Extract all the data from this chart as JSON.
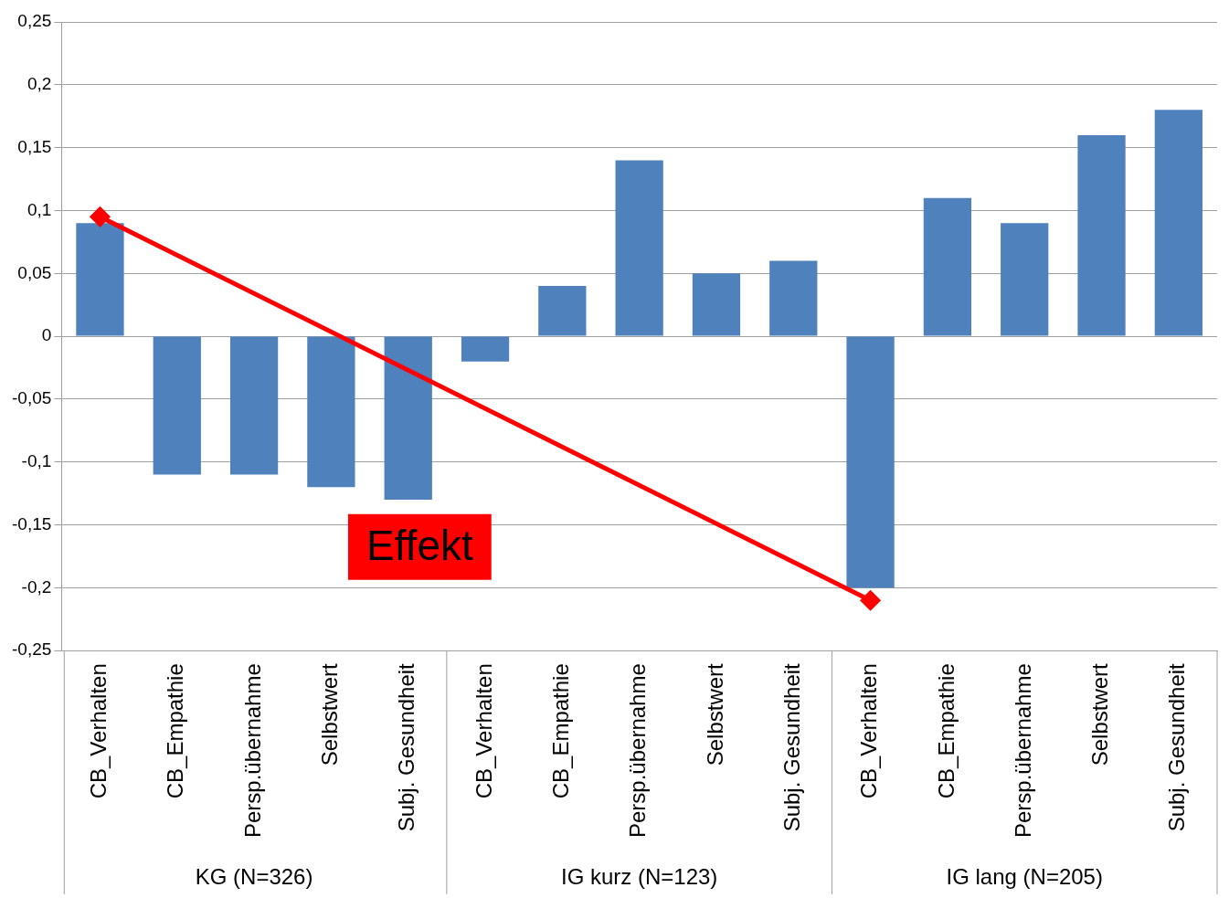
{
  "chart_data": {
    "type": "bar",
    "categories": [
      "CB_Verhalten",
      "CB_Empathie",
      "Persp.übernahme",
      "Selbstwert",
      "Subj. Gesundheit",
      "CB_Verhalten",
      "CB_Empathie",
      "Persp.übernahme",
      "Selbstwert",
      "Subj. Gesundheit",
      "CB_Verhalten",
      "CB_Empathie",
      "Persp.übernahme",
      "Selbstwert",
      "Subj. Gesundheit"
    ],
    "series": [
      {
        "type": "bar",
        "color": "#4f81bd",
        "values": [
          0.09,
          -0.11,
          -0.11,
          -0.12,
          -0.13,
          -0.02,
          0.04,
          0.14,
          0.05,
          0.06,
          -0.2,
          0.11,
          0.09,
          0.16,
          0.18
        ]
      },
      {
        "type": "line",
        "color": "#ff0000",
        "values": [
          0.095,
          null,
          null,
          null,
          null,
          null,
          null,
          null,
          null,
          null,
          -0.21,
          null,
          null,
          null,
          null
        ]
      }
    ],
    "ylim": [
      -0.25,
      0.25
    ],
    "yticks": [
      {
        "value": -0.25,
        "label": "-0,25"
      },
      {
        "value": -0.2,
        "label": "-0,2"
      },
      {
        "value": -0.15,
        "label": "-0,15"
      },
      {
        "value": -0.1,
        "label": "-0,1"
      },
      {
        "value": -0.05,
        "label": "-0,05"
      },
      {
        "value": 0,
        "label": "0"
      },
      {
        "value": 0.05,
        "label": "0,05"
      },
      {
        "value": 0.1,
        "label": "0,1"
      },
      {
        "value": 0.15,
        "label": "0,15"
      },
      {
        "value": 0.2,
        "label": "0,2"
      },
      {
        "value": 0.25,
        "label": "0,25"
      }
    ],
    "grid": "y",
    "marker": "diamond",
    "annotations": [
      "KG (N=326)",
      "IG kurz (N=123)",
      "IG lang (N=205)",
      "Effekt"
    ]
  }
}
